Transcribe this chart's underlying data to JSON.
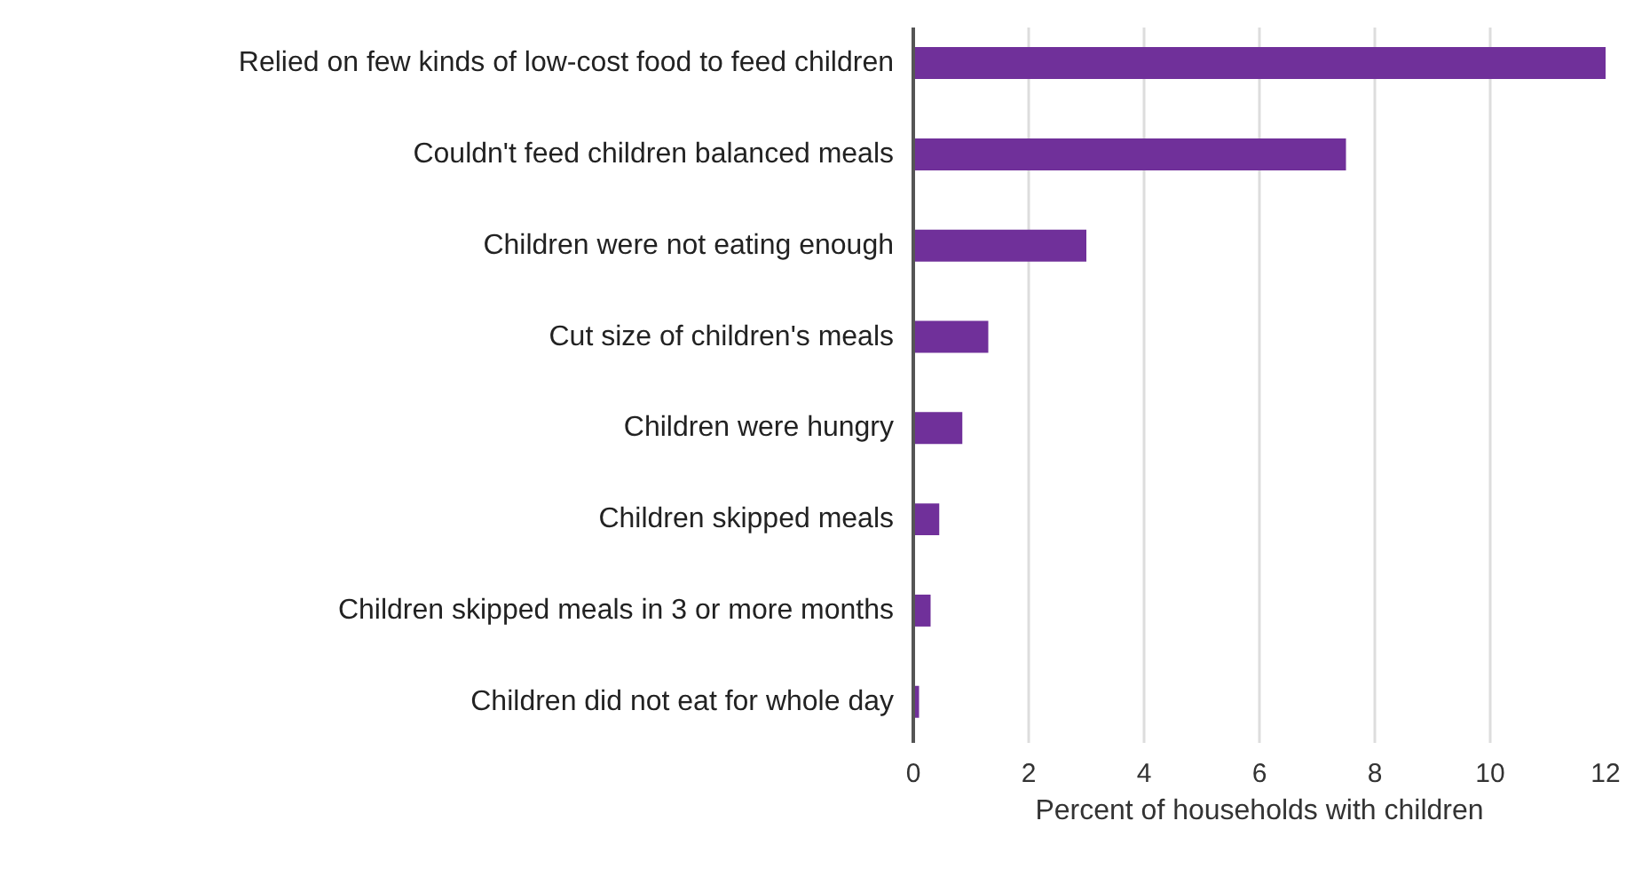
{
  "chart_data": {
    "type": "bar",
    "orientation": "horizontal",
    "categories": [
      "Relied on few kinds of low-cost food to feed children",
      "Couldn't feed children balanced meals",
      "Children were not eating enough",
      "Cut size of children's meals",
      "Children were hungry",
      "Children skipped meals",
      "Children skipped meals in 3 or more months",
      "Children did not eat for whole day"
    ],
    "values": [
      12.0,
      7.5,
      3.0,
      1.3,
      0.85,
      0.45,
      0.3,
      0.1
    ],
    "color": "#70309a",
    "xlim": [
      0,
      12
    ],
    "xticks": [
      0,
      2,
      4,
      6,
      8,
      10,
      12
    ],
    "xlabel": "Percent of households with children",
    "grid": "x"
  }
}
